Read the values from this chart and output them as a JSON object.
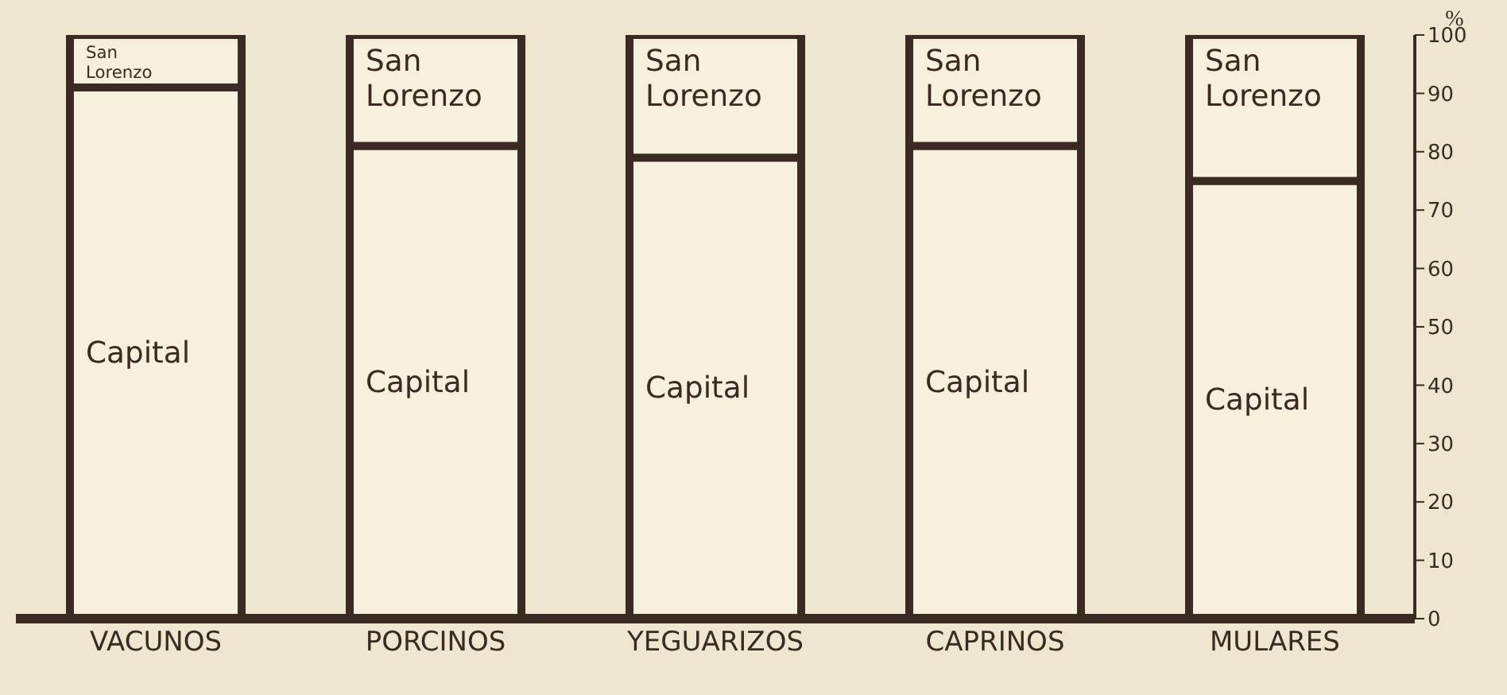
{
  "chart_data": {
    "type": "bar",
    "stacked": true,
    "categories": [
      "VACUNOS",
      "PORCINOS",
      "YEGUARIZOS",
      "CAPRINOS",
      "MULARES"
    ],
    "series": [
      {
        "name": "Capital",
        "color": "#f7f0df",
        "values": [
          91,
          81,
          79,
          81,
          75
        ]
      },
      {
        "name": "San Lorenzo",
        "color": "#f7f0df",
        "values": [
          9,
          19,
          21,
          19,
          25
        ]
      }
    ],
    "ylabel": "%",
    "ylim": [
      0,
      100
    ],
    "yticks": [
      0,
      10,
      20,
      30,
      40,
      50,
      60,
      70,
      80,
      90,
      100
    ],
    "grid": false,
    "legend": false
  }
}
